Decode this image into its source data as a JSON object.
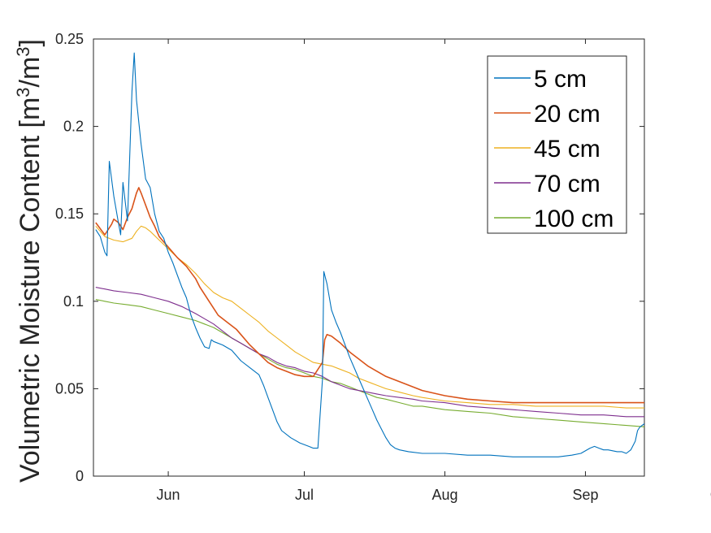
{
  "chart_data": {
    "type": "line",
    "title": "",
    "xlabel": "",
    "ylabel": {
      "base": "Volumetric Moisture Content [m",
      "sup1": "3",
      "mid": "/m",
      "sup2": "3",
      "end": "]"
    },
    "xlim": [
      7.5,
      129
    ],
    "ylim": [
      0,
      0.25
    ],
    "x_ticks": [
      {
        "x": 24,
        "label": "Jun"
      },
      {
        "x": 54,
        "label": "Jul"
      },
      {
        "x": 85,
        "label": "Aug"
      },
      {
        "x": 116,
        "label": "Sep"
      },
      {
        "x": 146,
        "label": "Oct"
      }
    ],
    "y_ticks": [
      {
        "y": 0,
        "label": "0"
      },
      {
        "y": 0.05,
        "label": "0.05"
      },
      {
        "y": 0.1,
        "label": "0.1"
      },
      {
        "y": 0.15,
        "label": "0.15"
      },
      {
        "y": 0.2,
        "label": "0.2"
      },
      {
        "y": 0.25,
        "label": "0.25"
      }
    ],
    "legend_position": "top-right",
    "grid": false,
    "series": [
      {
        "name": "5 cm",
        "color": "#0072BD",
        "points": [
          [
            8,
            0.141
          ],
          [
            9,
            0.137
          ],
          [
            10,
            0.128
          ],
          [
            10.5,
            0.126
          ],
          [
            11,
            0.18
          ],
          [
            12,
            0.16
          ],
          [
            13,
            0.145
          ],
          [
            13.5,
            0.138
          ],
          [
            14,
            0.168
          ],
          [
            15,
            0.146
          ],
          [
            16,
            0.22
          ],
          [
            16.5,
            0.242
          ],
          [
            17,
            0.215
          ],
          [
            18,
            0.19
          ],
          [
            19,
            0.17
          ],
          [
            20,
            0.165
          ],
          [
            21,
            0.15
          ],
          [
            22,
            0.14
          ],
          [
            23,
            0.136
          ],
          [
            24,
            0.128
          ],
          [
            25,
            0.122
          ],
          [
            26,
            0.115
          ],
          [
            27,
            0.108
          ],
          [
            28,
            0.102
          ],
          [
            29,
            0.092
          ],
          [
            30,
            0.085
          ],
          [
            31,
            0.079
          ],
          [
            32,
            0.074
          ],
          [
            33,
            0.073
          ],
          [
            33.5,
            0.078
          ],
          [
            34,
            0.077
          ],
          [
            36,
            0.075
          ],
          [
            38,
            0.072
          ],
          [
            40,
            0.066
          ],
          [
            42,
            0.062
          ],
          [
            44,
            0.058
          ],
          [
            45,
            0.052
          ],
          [
            46,
            0.045
          ],
          [
            47,
            0.038
          ],
          [
            48,
            0.031
          ],
          [
            49,
            0.026
          ],
          [
            51,
            0.022
          ],
          [
            53,
            0.019
          ],
          [
            55,
            0.017
          ],
          [
            56,
            0.016
          ],
          [
            57,
            0.016
          ],
          [
            58,
            0.055
          ],
          [
            58.3,
            0.117
          ],
          [
            59,
            0.11
          ],
          [
            60,
            0.095
          ],
          [
            61,
            0.088
          ],
          [
            62,
            0.082
          ],
          [
            63,
            0.075
          ],
          [
            64,
            0.068
          ],
          [
            65,
            0.062
          ],
          [
            66,
            0.056
          ],
          [
            67,
            0.05
          ],
          [
            68,
            0.044
          ],
          [
            69,
            0.038
          ],
          [
            70,
            0.032
          ],
          [
            71,
            0.027
          ],
          [
            72,
            0.022
          ],
          [
            73,
            0.018
          ],
          [
            74,
            0.016
          ],
          [
            75,
            0.015
          ],
          [
            77,
            0.014
          ],
          [
            80,
            0.013
          ],
          [
            85,
            0.013
          ],
          [
            90,
            0.012
          ],
          [
            95,
            0.012
          ],
          [
            100,
            0.011
          ],
          [
            105,
            0.011
          ],
          [
            110,
            0.011
          ],
          [
            113,
            0.012
          ],
          [
            115,
            0.013
          ],
          [
            117,
            0.016
          ],
          [
            118,
            0.017
          ],
          [
            119,
            0.016
          ],
          [
            120,
            0.015
          ],
          [
            121,
            0.015
          ],
          [
            123,
            0.014
          ],
          [
            124,
            0.014
          ],
          [
            125,
            0.013
          ],
          [
            126,
            0.015
          ],
          [
            127,
            0.02
          ],
          [
            127.5,
            0.026
          ],
          [
            128,
            0.028
          ],
          [
            129,
            0.03
          ],
          [
            130,
            0.031
          ],
          [
            131,
            0.03
          ]
        ]
      },
      {
        "name": "20 cm",
        "color": "#D95319",
        "points": [
          [
            8,
            0.145
          ],
          [
            10,
            0.138
          ],
          [
            11.5,
            0.144
          ],
          [
            12,
            0.147
          ],
          [
            13,
            0.145
          ],
          [
            14,
            0.141
          ],
          [
            15,
            0.148
          ],
          [
            16,
            0.153
          ],
          [
            17,
            0.162
          ],
          [
            17.5,
            0.165
          ],
          [
            18,
            0.162
          ],
          [
            19,
            0.155
          ],
          [
            20,
            0.148
          ],
          [
            21,
            0.143
          ],
          [
            22,
            0.137
          ],
          [
            24,
            0.131
          ],
          [
            26,
            0.125
          ],
          [
            28,
            0.12
          ],
          [
            30,
            0.113
          ],
          [
            31,
            0.108
          ],
          [
            33,
            0.1
          ],
          [
            35,
            0.092
          ],
          [
            37,
            0.088
          ],
          [
            39,
            0.084
          ],
          [
            40,
            0.081
          ],
          [
            42,
            0.075
          ],
          [
            44,
            0.07
          ],
          [
            46,
            0.065
          ],
          [
            48,
            0.062
          ],
          [
            50,
            0.06
          ],
          [
            52,
            0.058
          ],
          [
            54,
            0.057
          ],
          [
            56,
            0.057
          ],
          [
            58,
            0.065
          ],
          [
            58.5,
            0.078
          ],
          [
            59,
            0.081
          ],
          [
            60,
            0.08
          ],
          [
            62,
            0.076
          ],
          [
            64,
            0.071
          ],
          [
            66,
            0.067
          ],
          [
            68,
            0.063
          ],
          [
            70,
            0.06
          ],
          [
            72,
            0.057
          ],
          [
            75,
            0.054
          ],
          [
            78,
            0.051
          ],
          [
            80,
            0.049
          ],
          [
            85,
            0.046
          ],
          [
            90,
            0.044
          ],
          [
            95,
            0.043
          ],
          [
            100,
            0.042
          ],
          [
            105,
            0.042
          ],
          [
            110,
            0.042
          ],
          [
            115,
            0.042
          ],
          [
            120,
            0.042
          ],
          [
            125,
            0.042
          ],
          [
            130,
            0.042
          ],
          [
            131,
            0.042
          ]
        ]
      },
      {
        "name": "45 cm",
        "color": "#EDB120",
        "points": [
          [
            8,
            0.143
          ],
          [
            9,
            0.14
          ],
          [
            10,
            0.137
          ],
          [
            12,
            0.135
          ],
          [
            14,
            0.134
          ],
          [
            16,
            0.136
          ],
          [
            17,
            0.14
          ],
          [
            18,
            0.143
          ],
          [
            19,
            0.142
          ],
          [
            20,
            0.14
          ],
          [
            22,
            0.135
          ],
          [
            24,
            0.13
          ],
          [
            26,
            0.125
          ],
          [
            28,
            0.121
          ],
          [
            30,
            0.116
          ],
          [
            32,
            0.11
          ],
          [
            34,
            0.105
          ],
          [
            36,
            0.102
          ],
          [
            38,
            0.1
          ],
          [
            40,
            0.096
          ],
          [
            42,
            0.092
          ],
          [
            44,
            0.088
          ],
          [
            46,
            0.083
          ],
          [
            48,
            0.079
          ],
          [
            50,
            0.075
          ],
          [
            52,
            0.071
          ],
          [
            54,
            0.068
          ],
          [
            56,
            0.065
          ],
          [
            58,
            0.064
          ],
          [
            60,
            0.063
          ],
          [
            62,
            0.061
          ],
          [
            64,
            0.059
          ],
          [
            66,
            0.056
          ],
          [
            68,
            0.054
          ],
          [
            70,
            0.052
          ],
          [
            72,
            0.05
          ],
          [
            75,
            0.048
          ],
          [
            78,
            0.046
          ],
          [
            80,
            0.045
          ],
          [
            85,
            0.043
          ],
          [
            90,
            0.042
          ],
          [
            95,
            0.041
          ],
          [
            100,
            0.041
          ],
          [
            105,
            0.04
          ],
          [
            110,
            0.04
          ],
          [
            115,
            0.04
          ],
          [
            120,
            0.04
          ],
          [
            125,
            0.039
          ],
          [
            130,
            0.039
          ],
          [
            131,
            0.039
          ]
        ]
      },
      {
        "name": "70 cm",
        "color": "#7E2F8E",
        "points": [
          [
            8,
            0.108
          ],
          [
            10,
            0.107
          ],
          [
            12,
            0.106
          ],
          [
            15,
            0.105
          ],
          [
            18,
            0.104
          ],
          [
            21,
            0.102
          ],
          [
            24,
            0.1
          ],
          [
            27,
            0.097
          ],
          [
            30,
            0.093
          ],
          [
            32,
            0.09
          ],
          [
            34,
            0.087
          ],
          [
            36,
            0.083
          ],
          [
            38,
            0.079
          ],
          [
            40,
            0.076
          ],
          [
            42,
            0.073
          ],
          [
            44,
            0.07
          ],
          [
            46,
            0.068
          ],
          [
            48,
            0.065
          ],
          [
            50,
            0.063
          ],
          [
            52,
            0.062
          ],
          [
            54,
            0.06
          ],
          [
            56,
            0.059
          ],
          [
            58,
            0.057
          ],
          [
            60,
            0.054
          ],
          [
            62,
            0.052
          ],
          [
            64,
            0.05
          ],
          [
            66,
            0.049
          ],
          [
            68,
            0.048
          ],
          [
            70,
            0.047
          ],
          [
            72,
            0.046
          ],
          [
            75,
            0.045
          ],
          [
            78,
            0.044
          ],
          [
            80,
            0.043
          ],
          [
            85,
            0.042
          ],
          [
            90,
            0.04
          ],
          [
            95,
            0.039
          ],
          [
            100,
            0.038
          ],
          [
            105,
            0.037
          ],
          [
            110,
            0.036
          ],
          [
            115,
            0.035
          ],
          [
            120,
            0.035
          ],
          [
            125,
            0.034
          ],
          [
            130,
            0.034
          ],
          [
            131,
            0.034
          ]
        ]
      },
      {
        "name": "100 cm",
        "color": "#77AC30",
        "points": [
          [
            8,
            0.101
          ],
          [
            10,
            0.1
          ],
          [
            12,
            0.099
          ],
          [
            15,
            0.098
          ],
          [
            18,
            0.097
          ],
          [
            21,
            0.095
          ],
          [
            24,
            0.093
          ],
          [
            27,
            0.091
          ],
          [
            30,
            0.089
          ],
          [
            32,
            0.087
          ],
          [
            34,
            0.085
          ],
          [
            36,
            0.082
          ],
          [
            38,
            0.079
          ],
          [
            40,
            0.076
          ],
          [
            42,
            0.073
          ],
          [
            44,
            0.07
          ],
          [
            46,
            0.067
          ],
          [
            48,
            0.064
          ],
          [
            50,
            0.062
          ],
          [
            52,
            0.061
          ],
          [
            54,
            0.059
          ],
          [
            56,
            0.057
          ],
          [
            58,
            0.056
          ],
          [
            60,
            0.054
          ],
          [
            62,
            0.053
          ],
          [
            64,
            0.051
          ],
          [
            66,
            0.049
          ],
          [
            68,
            0.047
          ],
          [
            70,
            0.045
          ],
          [
            72,
            0.044
          ],
          [
            75,
            0.042
          ],
          [
            78,
            0.04
          ],
          [
            80,
            0.04
          ],
          [
            85,
            0.038
          ],
          [
            90,
            0.037
          ],
          [
            95,
            0.036
          ],
          [
            100,
            0.034
          ],
          [
            105,
            0.033
          ],
          [
            110,
            0.032
          ],
          [
            115,
            0.031
          ],
          [
            120,
            0.03
          ],
          [
            125,
            0.029
          ],
          [
            130,
            0.028
          ],
          [
            131,
            0.028
          ]
        ]
      }
    ]
  }
}
